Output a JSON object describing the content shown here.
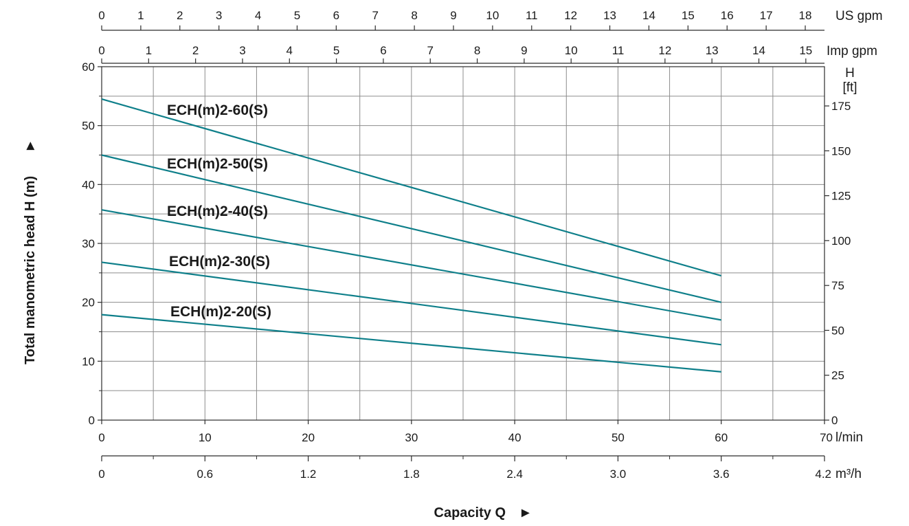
{
  "chart_data": {
    "type": "line",
    "title": "",
    "xlabel": "Capacity Q",
    "ylabel": "Total manometric head H (m)",
    "x_unit": "l/min",
    "xlim": [
      0,
      70
    ],
    "ylim": [
      0,
      60
    ],
    "grid": true,
    "x_ticks": [
      "0",
      "10",
      "20",
      "30",
      "40",
      "50",
      "60",
      "70"
    ],
    "y_ticks": [
      "0",
      "10",
      "20",
      "30",
      "40",
      "50",
      "60"
    ],
    "series": [
      {
        "name": "ECH(m)2-60(S)",
        "x": [
          0,
          60
        ],
        "y": [
          54.5,
          24.5
        ]
      },
      {
        "name": "ECH(m)2-50(S)",
        "x": [
          0,
          60
        ],
        "y": [
          45.0,
          20.0
        ]
      },
      {
        "name": "ECH(m)2-40(S)",
        "x": [
          0,
          60
        ],
        "y": [
          35.7,
          17.0
        ]
      },
      {
        "name": "ECH(m)2-30(S)",
        "x": [
          0,
          60
        ],
        "y": [
          26.8,
          12.8
        ]
      },
      {
        "name": "ECH(m)2-20(S)",
        "x": [
          0,
          60
        ],
        "y": [
          17.9,
          8.2
        ]
      }
    ],
    "secondary_axes": {
      "us_gpm": {
        "unit": "US gpm",
        "ticks": [
          "0",
          "1",
          "2",
          "3",
          "4",
          "5",
          "6",
          "7",
          "8",
          "9",
          "10",
          "11",
          "12",
          "13",
          "14",
          "15",
          "16",
          "17",
          "18"
        ]
      },
      "imp_gpm": {
        "unit": "Imp gpm",
        "ticks": [
          "0",
          "1",
          "2",
          "3",
          "4",
          "5",
          "6",
          "7",
          "8",
          "9",
          "10",
          "11",
          "12",
          "13",
          "14",
          "15"
        ]
      },
      "m3h": {
        "unit": "m³/h",
        "ticks": [
          "0",
          "0.6",
          "1.2",
          "1.8",
          "2.4",
          "3.0",
          "3.6",
          "4.2"
        ]
      },
      "feet": {
        "unit_lines": [
          "H",
          "[ft]"
        ],
        "ticks": [
          "0",
          "25",
          "50",
          "75",
          "100",
          "125",
          "150",
          "175"
        ]
      }
    },
    "line_color": "#0e7f8a"
  },
  "decor": {
    "x_arrow": "►",
    "y_arrow": "►"
  }
}
